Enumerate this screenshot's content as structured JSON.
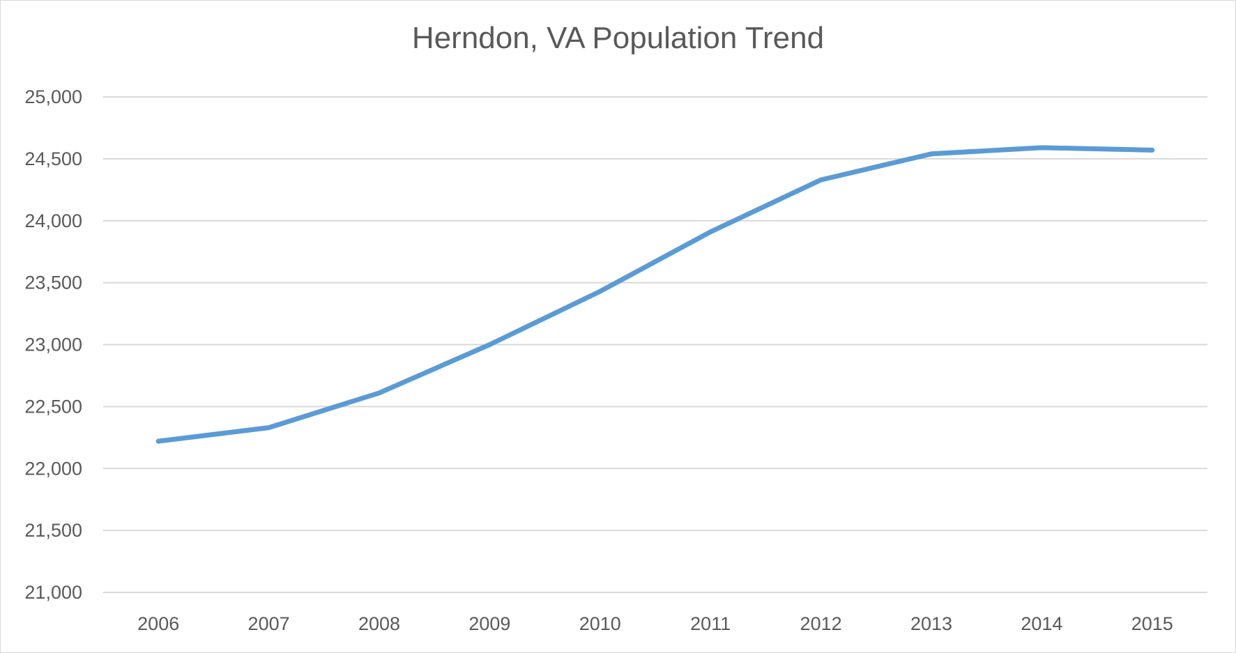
{
  "chart_data": {
    "type": "line",
    "title": "Herndon, VA Population Trend",
    "xlabel": "",
    "ylabel": "",
    "categories": [
      "2006",
      "2007",
      "2008",
      "2009",
      "2010",
      "2011",
      "2012",
      "2013",
      "2014",
      "2015"
    ],
    "series": [
      {
        "values": [
          22220,
          22330,
          22610,
          23000,
          23430,
          23910,
          24330,
          24540,
          24590,
          24570
        ],
        "color": "#5b9bd5"
      }
    ],
    "ylim": [
      21000,
      25000
    ],
    "yticks": [
      21000,
      21500,
      22000,
      22500,
      23000,
      23500,
      24000,
      24500,
      25000
    ],
    "ytick_labels": [
      "21,000",
      "21,500",
      "22,000",
      "22,500",
      "23,000",
      "23,500",
      "24,000",
      "24,500",
      "25,000"
    ],
    "grid": true,
    "legend": "none"
  }
}
